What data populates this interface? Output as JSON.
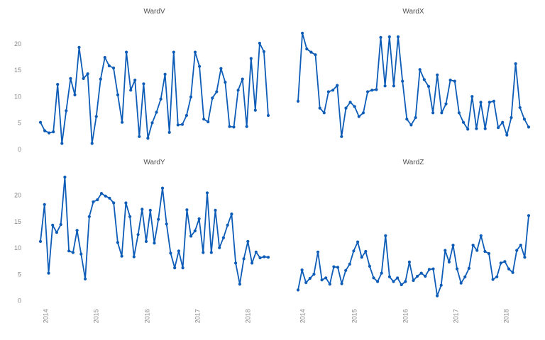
{
  "page": {
    "background_color": "#ffffff",
    "accent_color": "#0d5cb7",
    "tick_label_color": "#868686",
    "title_color": "#4f4f4f"
  },
  "chart_data": [
    {
      "type": "line",
      "title": "WardV",
      "markers": true,
      "grid": false,
      "legend": "none",
      "ylim": [
        0,
        24
      ],
      "y_tick_labels": [
        "0",
        "5",
        "10",
        "15",
        "20"
      ],
      "y_tick_values": [
        0,
        5,
        10,
        15,
        20
      ],
      "x_tick_labels": [
        "2014",
        "2015",
        "2016",
        "2017",
        "2018"
      ],
      "x_tick_labels_visible": false,
      "y_tick_labels_visible": true,
      "values": [
        5.1,
        3.5,
        3.1,
        3.3,
        12.3,
        1.1,
        7.3,
        13.4,
        10.3,
        19.3,
        13.4,
        14.3,
        1.1,
        6.2,
        13.3,
        17.4,
        15.8,
        15.4,
        10.3,
        5.1,
        18.4,
        11.2,
        13.1,
        2.4,
        12.4,
        2.1,
        5.0,
        7.0,
        9.5,
        14.2,
        3.2,
        18.4,
        4.6,
        4.7,
        6.4,
        9.9,
        18.4,
        15.7,
        5.7,
        5.2,
        9.7,
        10.9,
        15.3,
        12.7,
        4.3,
        4.2,
        11.2,
        13.3,
        4.3,
        17.2,
        7.4,
        20.1,
        18.5,
        6.4
      ]
    },
    {
      "type": "line",
      "title": "WardX",
      "markers": true,
      "grid": false,
      "legend": "none",
      "ylim": [
        0,
        24
      ],
      "y_tick_labels": [
        "0",
        "5",
        "10",
        "15",
        "20"
      ],
      "y_tick_values": [
        0,
        5,
        10,
        15,
        20
      ],
      "x_tick_labels": [
        "2014",
        "2015",
        "2016",
        "2017",
        "2018"
      ],
      "x_tick_labels_visible": false,
      "y_tick_labels_visible": false,
      "values": [
        9.1,
        22.0,
        19.0,
        18.4,
        17.9,
        7.8,
        6.9,
        10.9,
        11.2,
        12.1,
        2.4,
        7.8,
        8.9,
        8.1,
        6.2,
        6.9,
        10.9,
        11.2,
        11.3,
        21.2,
        12.0,
        21.3,
        12.0,
        21.3,
        12.9,
        5.7,
        4.6,
        6.0,
        15.1,
        13.2,
        11.9,
        6.9,
        14.1,
        6.9,
        8.6,
        13.1,
        12.9,
        6.9,
        5.1,
        3.8,
        10.0,
        3.9,
        8.9,
        3.9,
        8.9,
        9.1,
        4.1,
        5.1,
        2.7,
        6.0,
        16.2,
        7.9,
        5.7,
        4.2
      ]
    },
    {
      "type": "line",
      "title": "WardY",
      "markers": true,
      "grid": false,
      "legend": "none",
      "ylim": [
        0,
        24
      ],
      "y_tick_labels": [
        "0",
        "5",
        "10",
        "15",
        "20"
      ],
      "y_tick_values": [
        0,
        5,
        10,
        15,
        20
      ],
      "x_tick_labels": [
        "2014",
        "2015",
        "2016",
        "2017",
        "2018"
      ],
      "x_tick_labels_visible": true,
      "y_tick_labels_visible": true,
      "values": [
        11.2,
        18.2,
        5.2,
        14.3,
        12.9,
        14.4,
        23.4,
        9.4,
        9.1,
        13.3,
        8.8,
        4.1,
        15.9,
        18.7,
        19.1,
        20.3,
        19.8,
        19.4,
        18.5,
        11.0,
        8.4,
        18.5,
        15.9,
        8.3,
        12.5,
        17.3,
        11.2,
        17.1,
        10.9,
        15.4,
        21.3,
        14.5,
        9.0,
        6.2,
        9.4,
        6.2,
        17.2,
        12.2,
        13.2,
        15.5,
        9.1,
        20.4,
        9.1,
        17.1,
        10.0,
        11.9,
        14.3,
        16.4,
        7.1,
        3.1,
        7.9,
        11.2,
        7.1,
        9.2,
        8.1,
        8.3,
        8.2
      ]
    },
    {
      "type": "line",
      "title": "WardZ",
      "markers": true,
      "grid": false,
      "legend": "none",
      "ylim": [
        0,
        24
      ],
      "y_tick_labels": [
        "0",
        "5",
        "10",
        "15",
        "20"
      ],
      "y_tick_values": [
        0,
        5,
        10,
        15,
        20
      ],
      "x_tick_labels": [
        "2014",
        "2015",
        "2016",
        "2017",
        "2018"
      ],
      "x_tick_labels_visible": true,
      "y_tick_labels_visible": false,
      "values": [
        2.0,
        5.8,
        3.4,
        4.2,
        5.0,
        9.2,
        3.9,
        4.3,
        3.1,
        6.4,
        6.3,
        3.2,
        5.7,
        6.9,
        9.4,
        11.1,
        8.2,
        9.3,
        6.5,
        4.3,
        3.6,
        5.2,
        12.3,
        4.5,
        3.6,
        4.3,
        3.0,
        3.6,
        7.3,
        3.8,
        4.6,
        5.2,
        4.6,
        5.9,
        6.0,
        0.9,
        2.9,
        9.5,
        7.3,
        10.5,
        6.0,
        3.3,
        4.5,
        6.1,
        10.5,
        9.5,
        12.3,
        9.3,
        8.9,
        4.0,
        4.5,
        7.1,
        7.4,
        6.0,
        5.3,
        9.5,
        10.5,
        8.2,
        16.1
      ]
    }
  ]
}
